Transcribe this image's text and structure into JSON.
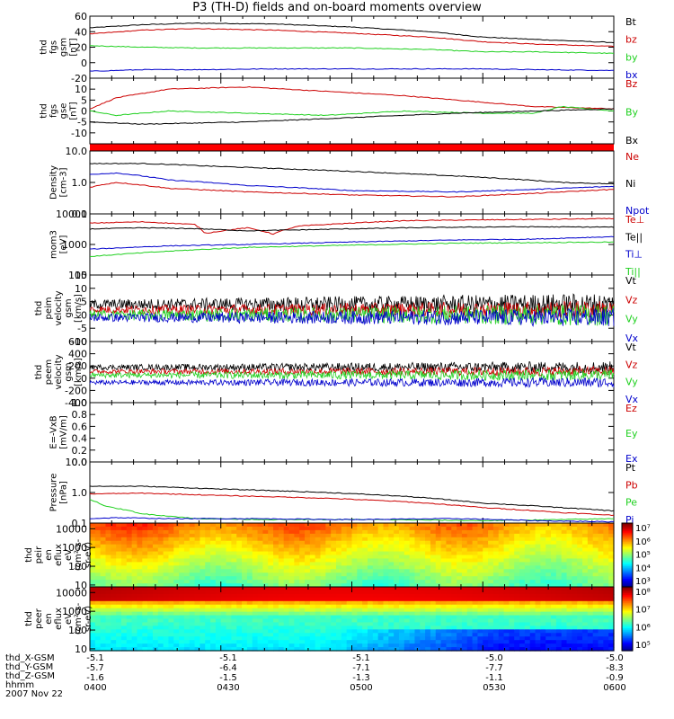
{
  "title": "P3 (TH-D) fields and on-board moments overview",
  "colors": {
    "black": "#000000",
    "red": "#cc0000",
    "green": "#1fd01f",
    "blue": "#0000cc",
    "separator": "#ff0000"
  },
  "chart_data": {
    "type": "line",
    "panels": [
      {
        "id": "bgsm",
        "ylabel": [
          "thd",
          "fgs",
          "gsm",
          "[nT]"
        ],
        "yticks": [
          "60",
          "40",
          "20",
          "0",
          "-20"
        ],
        "ylim": [
          -20,
          60
        ],
        "log": false,
        "legend": [
          {
            "name": "Bt",
            "color": "#000000"
          },
          {
            "name": "bz",
            "color": "#cc0000"
          },
          {
            "name": "by",
            "color": "#1fd01f"
          },
          {
            "name": "bx",
            "color": "#0000cc"
          }
        ],
        "series": [
          {
            "name": "Bt",
            "color": "#000000",
            "x": [
              0,
              0.1,
              0.2,
              0.35,
              0.5,
              0.65,
              0.75,
              0.85,
              1
            ],
            "values": [
              45,
              49,
              51,
              50,
              46,
              40,
              33,
              30,
              26
            ]
          },
          {
            "name": "bz",
            "color": "#cc0000",
            "x": [
              0,
              0.1,
              0.2,
              0.35,
              0.5,
              0.65,
              0.75,
              0.85,
              1
            ],
            "values": [
              37,
              42,
              44,
              42,
              38,
              33,
              27,
              24,
              21
            ]
          },
          {
            "name": "by",
            "color": "#1fd01f",
            "x": [
              0,
              0.1,
              0.2,
              0.35,
              0.5,
              0.65,
              0.75,
              0.85,
              1
            ],
            "values": [
              22,
              20,
              19,
              19,
              19,
              17,
              14,
              14,
              12
            ]
          },
          {
            "name": "bx",
            "color": "#0000cc",
            "x": [
              0,
              0.1,
              0.2,
              0.35,
              0.5,
              0.65,
              0.75,
              0.85,
              1
            ],
            "values": [
              -11,
              -9,
              -9,
              -8,
              -8,
              -8,
              -8,
              -9,
              -10
            ]
          }
        ]
      },
      {
        "id": "bgse",
        "ylabel": [
          "thd",
          "fgs",
          "gse",
          "[nT]"
        ],
        "yticks": [
          "10",
          "5",
          "0",
          "-5",
          "-10"
        ],
        "ylim": [
          -15,
          15
        ],
        "log": false,
        "legend": [
          {
            "name": "Bz",
            "color": "#cc0000"
          },
          {
            "name": "By",
            "color": "#1fd01f"
          },
          {
            "name": "Bx",
            "color": "#000000"
          }
        ],
        "series": [
          {
            "name": "Bz",
            "color": "#cc0000",
            "x": [
              0,
              0.05,
              0.15,
              0.3,
              0.45,
              0.6,
              0.75,
              0.85,
              1
            ],
            "values": [
              1,
              6,
              10,
              11,
              9,
              7,
              4,
              2,
              1
            ]
          },
          {
            "name": "By",
            "color": "#1fd01f",
            "x": [
              0,
              0.05,
              0.15,
              0.3,
              0.45,
              0.6,
              0.75,
              0.85,
              0.9,
              1
            ],
            "values": [
              0,
              -2,
              0,
              -1,
              -2,
              0,
              -1,
              -1,
              2,
              0
            ]
          },
          {
            "name": "Bx",
            "color": "#000000",
            "x": [
              0,
              0.1,
              0.3,
              0.5,
              0.7,
              0.85,
              1
            ],
            "values": [
              -5,
              -6,
              -5,
              -3,
              -1,
              0,
              1
            ]
          }
        ]
      },
      {
        "id": "density",
        "ylabel": [
          "Density",
          "[cm-3]"
        ],
        "yticks": [
          "10.0",
          "1.0",
          "0.1"
        ],
        "ylim": [
          0.1,
          10
        ],
        "log": true,
        "legend": [
          {
            "name": "Ne",
            "color": "#cc0000"
          },
          {
            "name": "Ni",
            "color": "#000000"
          },
          {
            "name": "Npot",
            "color": "#0000cc"
          }
        ],
        "series": [
          {
            "name": "Ni",
            "color": "#000000",
            "x": [
              0,
              0.1,
              0.25,
              0.4,
              0.6,
              0.8,
              0.9,
              1
            ],
            "values": [
              4.0,
              4.0,
              3.2,
              2.6,
              1.9,
              1.3,
              1.0,
              0.9
            ]
          },
          {
            "name": "Npot",
            "color": "#0000cc",
            "x": [
              0,
              0.05,
              0.15,
              0.3,
              0.5,
              0.7,
              0.85,
              1
            ],
            "values": [
              1.8,
              2.0,
              1.2,
              0.8,
              0.55,
              0.5,
              0.6,
              0.75
            ]
          },
          {
            "name": "Ne",
            "color": "#cc0000",
            "x": [
              0,
              0.05,
              0.15,
              0.3,
              0.5,
              0.7,
              0.85,
              1
            ],
            "values": [
              0.7,
              1.0,
              0.65,
              0.5,
              0.4,
              0.35,
              0.45,
              0.6
            ]
          }
        ]
      },
      {
        "id": "temp",
        "ylabel": [
          "mom3",
          "[eV]"
        ],
        "yticks": [
          "10000",
          "1000",
          "100"
        ],
        "ylim": [
          100,
          10000
        ],
        "log": true,
        "legend": [
          {
            "name": "Te⊥",
            "color": "#cc0000"
          },
          {
            "name": "Te||",
            "color": "#000000"
          },
          {
            "name": "Ti⊥",
            "color": "#0000cc"
          },
          {
            "name": "Ti||",
            "color": "#1fd01f"
          }
        ],
        "series": [
          {
            "name": "Te⊥",
            "color": "#cc0000",
            "x": [
              0,
              0.1,
              0.2,
              0.22,
              0.3,
              0.35,
              0.4,
              0.6,
              0.8,
              1
            ],
            "values": [
              5000,
              5500,
              4500,
              2300,
              3500,
              2200,
              4000,
              6000,
              6500,
              7000
            ]
          },
          {
            "name": "Te||",
            "color": "#000000",
            "x": [
              0,
              0.1,
              0.2,
              0.3,
              0.4,
              0.6,
              0.8,
              1
            ],
            "values": [
              3200,
              3500,
              3300,
              2800,
              3000,
              3500,
              3800,
              3700
            ]
          },
          {
            "name": "Ti⊥",
            "color": "#0000cc",
            "x": [
              0,
              0.15,
              0.3,
              0.5,
              0.7,
              0.85,
              1
            ],
            "values": [
              700,
              900,
              1000,
              1200,
              1400,
              1500,
              1800
            ]
          },
          {
            "name": "Ti||",
            "color": "#1fd01f",
            "x": [
              0,
              0.15,
              0.3,
              0.5,
              0.7,
              0.85,
              1
            ],
            "values": [
              400,
              600,
              800,
              950,
              1100,
              1150,
              1200
            ]
          }
        ]
      },
      {
        "id": "vel_small",
        "ylabel": [
          "thd",
          "peim",
          "velocity",
          "gsm",
          "[km/s]"
        ],
        "yticks": [
          "15",
          "10",
          "5",
          "0",
          "-5",
          "-10"
        ],
        "ylim": [
          -10,
          15
        ],
        "log": false,
        "noisy": true,
        "legend": [
          {
            "name": "Vt",
            "color": "#000000"
          },
          {
            "name": "Vz",
            "color": "#cc0000"
          },
          {
            "name": "Vy",
            "color": "#1fd01f"
          },
          {
            "name": "Vx",
            "color": "#0000cc"
          }
        ],
        "series": [
          {
            "name": "Vt",
            "color": "#000000",
            "base": 4,
            "amp": 3
          },
          {
            "name": "Vz",
            "color": "#cc0000",
            "base": 2,
            "amp": 2.5
          },
          {
            "name": "Vy",
            "color": "#1fd01f",
            "base": 0,
            "amp": 3
          },
          {
            "name": "Vx",
            "color": "#0000cc",
            "base": -1,
            "amp": 2.5
          }
        ]
      },
      {
        "id": "vel_large",
        "ylabel": [
          "thd",
          "peem",
          "velocity",
          "gsm",
          "[km/s]"
        ],
        "yticks": [
          "600",
          "400",
          "200",
          "0",
          "-200",
          "-400"
        ],
        "ylim": [
          -400,
          600
        ],
        "log": false,
        "noisy": true,
        "legend": [
          {
            "name": "Vt",
            "color": "#000000"
          },
          {
            "name": "Vz",
            "color": "#cc0000"
          },
          {
            "name": "Vy",
            "color": "#1fd01f"
          },
          {
            "name": "Vx",
            "color": "#0000cc"
          }
        ],
        "series": [
          {
            "name": "Vt",
            "color": "#000000",
            "base": 180,
            "amp": 70
          },
          {
            "name": "Vz",
            "color": "#cc0000",
            "base": 110,
            "amp": 60
          },
          {
            "name": "Vy",
            "color": "#1fd01f",
            "base": 50,
            "amp": 70
          },
          {
            "name": "Vx",
            "color": "#0000cc",
            "base": -70,
            "amp": 60
          }
        ]
      },
      {
        "id": "efield",
        "ylabel": [
          "E=-VxB",
          "[mV/m]"
        ],
        "yticks": [
          "1.0",
          "0.8",
          "0.6",
          "0.4",
          "0.2",
          "0.0"
        ],
        "ylim": [
          0,
          1
        ],
        "log": false,
        "legend": [
          {
            "name": "Ez",
            "color": "#cc0000"
          },
          {
            "name": "Ey",
            "color": "#1fd01f"
          },
          {
            "name": "Ex",
            "color": "#0000cc"
          }
        ],
        "series": []
      },
      {
        "id": "pressure",
        "ylabel": [
          "Pressure",
          "[nPa]"
        ],
        "yticks": [
          "10.0",
          "1.0",
          "0.1"
        ],
        "ylim": [
          0.1,
          10
        ],
        "log": true,
        "legend": [
          {
            "name": "Pt",
            "color": "#000000"
          },
          {
            "name": "Pb",
            "color": "#cc0000"
          },
          {
            "name": "Pe",
            "color": "#1fd01f"
          },
          {
            "name": "Pi",
            "color": "#0000cc"
          }
        ],
        "series": [
          {
            "name": "Pt",
            "color": "#000000",
            "x": [
              0,
              0.1,
              0.25,
              0.45,
              0.6,
              0.75,
              0.9,
              1
            ],
            "values": [
              1.6,
              1.6,
              1.3,
              1.0,
              0.75,
              0.45,
              0.32,
              0.25
            ]
          },
          {
            "name": "Pb",
            "color": "#cc0000",
            "x": [
              0,
              0.1,
              0.25,
              0.45,
              0.6,
              0.75,
              0.9,
              1
            ],
            "values": [
              0.9,
              0.95,
              0.8,
              0.65,
              0.5,
              0.32,
              0.22,
              0.18
            ]
          },
          {
            "name": "Pe",
            "color": "#1fd01f",
            "x": [
              0,
              0.03,
              0.1,
              0.2,
              0.35,
              0.55,
              0.75,
              0.9,
              1
            ],
            "values": [
              0.6,
              0.35,
              0.2,
              0.14,
              0.13,
              0.13,
              0.12,
              0.13,
              0.14
            ]
          },
          {
            "name": "Pi",
            "color": "#0000cc",
            "x": [
              0,
              0.05,
              0.15,
              0.3,
              0.5,
              0.7,
              0.85,
              1
            ],
            "values": [
              0.14,
              0.15,
              0.14,
              0.14,
              0.13,
              0.14,
              0.12,
              0.11
            ]
          }
        ]
      }
    ],
    "spectrograms": [
      {
        "id": "ion_spec",
        "ylabel": [
          "thd",
          "peir",
          "en",
          "eflux",
          "eV",
          "(cm²-s-",
          "sr-eV)"
        ],
        "yticks": [
          "10000",
          "1000",
          "100",
          "10"
        ],
        "colorbar_ticks": [
          "10⁷",
          "10⁶",
          "10⁵",
          "10⁴",
          "10³"
        ]
      },
      {
        "id": "elec_spec",
        "ylabel": [
          "thd",
          "peer",
          "en",
          "eflux",
          "eV",
          "(cm²-s-",
          "sr-eV)"
        ],
        "yticks": [
          "10000",
          "1000",
          "100",
          "10"
        ],
        "colorbar_ticks": [
          "10⁸",
          "10⁷",
          "10⁶",
          "10⁵"
        ]
      }
    ],
    "x_axis": {
      "row_labels": [
        "thd_X-GSM",
        "thd_Y-GSM",
        "thd_Z-GSM",
        "hhmm"
      ],
      "columns": [
        {
          "values": [
            "-5.1",
            "-5.7",
            "-1.6",
            "0400"
          ]
        },
        {
          "values": [
            "-5.1",
            "-6.4",
            "-1.5",
            "0430"
          ]
        },
        {
          "values": [
            "-5.1",
            "-7.1",
            "-1.3",
            "0500"
          ]
        },
        {
          "values": [
            "-5.0",
            "-7.7",
            "-1.1",
            "0530"
          ]
        },
        {
          "values": [
            "-5.0",
            "-8.3",
            "-0.9",
            "0600"
          ]
        }
      ],
      "date": "2007 Nov 22"
    }
  }
}
